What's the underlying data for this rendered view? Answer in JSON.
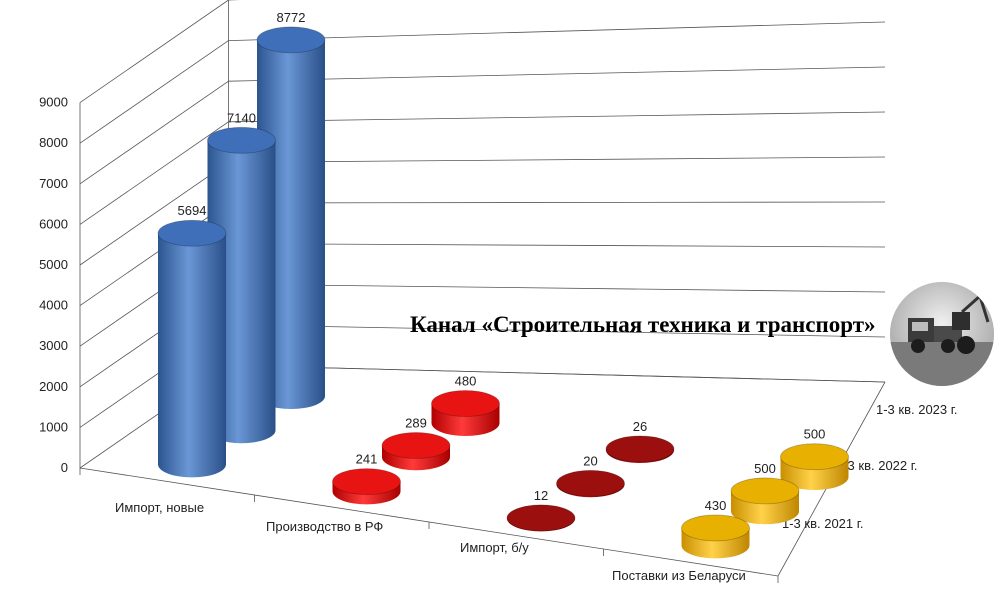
{
  "caption": "Канал «Строительная техника и транспорт»",
  "chart_data": {
    "type": "bar",
    "subtype": "3d-cylinder",
    "categories": [
      "Импорт, новые",
      "Производство в РФ",
      "Импорт, б/у",
      "Поставки из Беларуси"
    ],
    "series": [
      {
        "name": "1-3 кв. 2021 г.",
        "values": [
          5694,
          241,
          12,
          430
        ]
      },
      {
        "name": "1-3 кв. 2022 г.",
        "values": [
          7140,
          289,
          20,
          500
        ]
      },
      {
        "name": "1-3 кв. 2023 г.",
        "values": [
          8772,
          480,
          26,
          500
        ]
      }
    ],
    "y_ticks": [
      "0",
      "1000",
      "2000",
      "3000",
      "4000",
      "5000",
      "6000",
      "7000",
      "8000",
      "9000"
    ],
    "ylim": [
      0,
      9000
    ],
    "grid": true,
    "category_colors": [
      "#3f6fb8",
      "#e81414",
      "#9b0f0f",
      "#e8b000"
    ]
  },
  "photo": {
    "icon": "construction-machinery-photo"
  }
}
